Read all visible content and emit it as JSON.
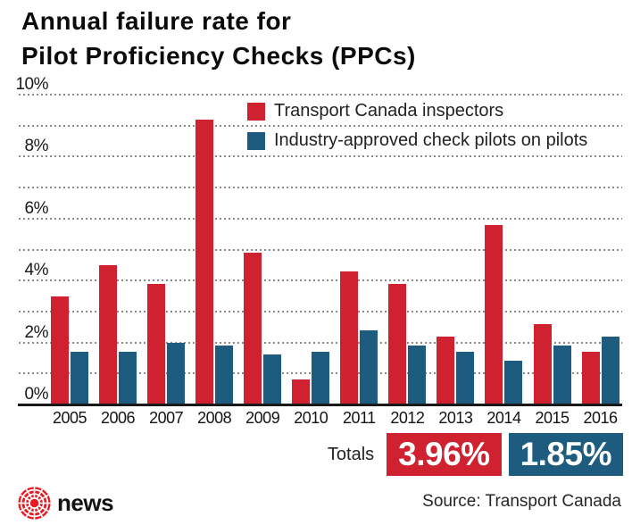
{
  "title": {
    "line1": "Annual failure rate for",
    "line2": "Pilot Proficiency Checks (PPCs)"
  },
  "colors": {
    "red": "#cf2130",
    "blue": "#1d5c7e",
    "cbc_red": "#e81b23",
    "axis": "#1a1a1a",
    "grid": "#8a8a8a"
  },
  "legend": {
    "items": [
      {
        "label": "Transport Canada inspectors",
        "color_key": "red"
      },
      {
        "label": "Industry-approved check pilots on pilots",
        "color_key": "blue"
      }
    ]
  },
  "y_axis": {
    "tick_labels": [
      "0%",
      "2%",
      "4%",
      "6%",
      "8%",
      "10%"
    ],
    "tick_values": [
      0,
      2,
      4,
      6,
      8,
      10
    ]
  },
  "totals": {
    "label": "Totals",
    "badges": [
      {
        "value": "3.96%",
        "color_key": "red"
      },
      {
        "value": "1.85%",
        "color_key": "blue"
      }
    ]
  },
  "footer": {
    "brand": "news",
    "source": "Source: Transport Canada"
  },
  "chart_data": {
    "type": "bar",
    "title": "Annual failure rate for Pilot Proficiency Checks (PPCs)",
    "categories": [
      "2005",
      "2006",
      "2007",
      "2008",
      "2009",
      "2010",
      "2011",
      "2012",
      "2013",
      "2014",
      "2015",
      "2016"
    ],
    "series": [
      {
        "name": "Transport Canada inspectors",
        "color": "#cf2130",
        "values": [
          3.5,
          4.5,
          3.9,
          9.2,
          4.9,
          0.8,
          4.3,
          3.9,
          2.2,
          5.8,
          2.6,
          1.7
        ]
      },
      {
        "name": "Industry-approved check pilots on pilots",
        "color": "#1d5c7e",
        "values": [
          1.7,
          1.7,
          2.0,
          1.9,
          1.6,
          1.7,
          2.4,
          1.9,
          1.7,
          1.4,
          1.9,
          2.2
        ]
      }
    ],
    "ylim": [
      0,
      10
    ],
    "ylabel": "",
    "xlabel": "",
    "grid": {
      "horizontal": true,
      "style": "dotted",
      "interval_pct": 1
    },
    "legend_position": "top-right",
    "totals": {
      "Transport Canada inspectors": "3.96%",
      "Industry-approved check pilots on pilots": "1.85%"
    }
  }
}
